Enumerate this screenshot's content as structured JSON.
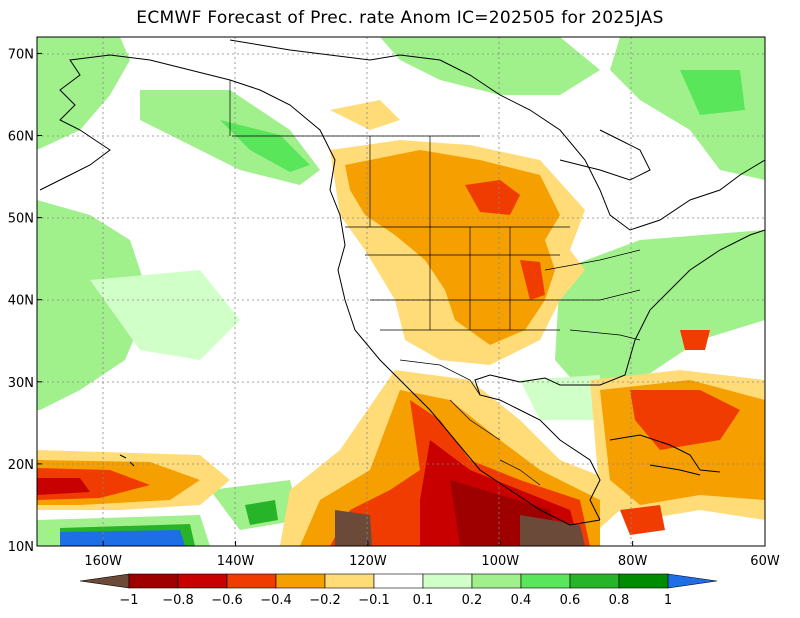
{
  "title": "ECMWF Forecast of Prec. rate Anom IC=202505 for 2025JAS",
  "map": {
    "lon_range": [
      -170,
      -60
    ],
    "lat_range": [
      10,
      72
    ],
    "x_ticks": [
      {
        "lon": -160,
        "label": "160W"
      },
      {
        "lon": -140,
        "label": "140W"
      },
      {
        "lon": -120,
        "label": "120W"
      },
      {
        "lon": -100,
        "label": "100W"
      },
      {
        "lon": -80,
        "label": "80W"
      },
      {
        "lon": -60,
        "label": "60W"
      }
    ],
    "y_ticks": [
      {
        "lat": 10,
        "label": "10N"
      },
      {
        "lat": 20,
        "label": "20N"
      },
      {
        "lat": 30,
        "label": "30N"
      },
      {
        "lat": 40,
        "label": "40N"
      },
      {
        "lat": 50,
        "label": "50N"
      },
      {
        "lat": 60,
        "label": "60N"
      },
      {
        "lat": 70,
        "label": "70N"
      }
    ],
    "grid": true
  },
  "colorbar": {
    "colors": [
      "#6b4a3a",
      "#9e0000",
      "#c80000",
      "#f03c00",
      "#f5a000",
      "#ffdc78",
      "#ffffff",
      "#d0ffc8",
      "#a0f08c",
      "#5ae65a",
      "#28b428",
      "#008c00",
      "#1e6ee6"
    ],
    "labels": [
      "−1",
      "−0.8",
      "−0.6",
      "−0.4",
      "−0.2",
      "−0.1",
      "0.1",
      "0.2",
      "0.4",
      "0.6",
      "0.8",
      "1"
    ]
  }
}
